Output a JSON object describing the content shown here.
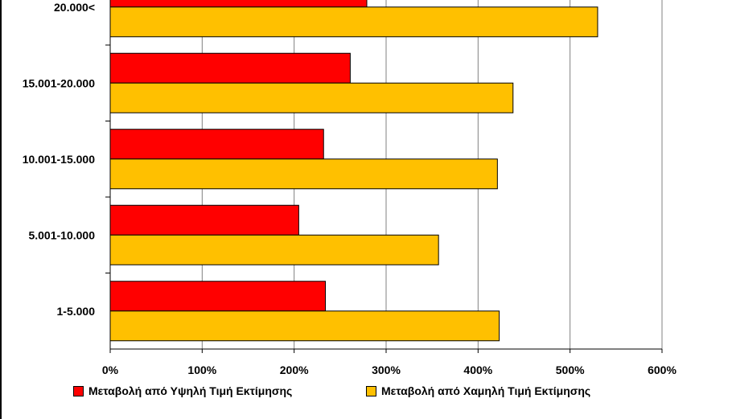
{
  "chart_data": {
    "type": "bar",
    "orientation": "horizontal",
    "categories": [
      "20.000<",
      "15.001-20.000",
      "10.001-15.000",
      "5.001-10.000",
      "1-5.000"
    ],
    "series": [
      {
        "name": "Μεταβολή από Υψηλή Τιμή Εκτίμησης",
        "color": "#ff0000",
        "values": [
          279,
          261,
          232,
          205,
          234
        ]
      },
      {
        "name": "Μεταβολή από Χαμηλή Τιμή Εκτίμησης",
        "color": "#ffc000",
        "values": [
          530,
          438,
          421,
          357,
          423
        ]
      }
    ],
    "xlim": [
      0,
      600
    ],
    "xticks": [
      0,
      100,
      200,
      300,
      400,
      500,
      600
    ],
    "xtick_labels": [
      "0%",
      "100%",
      "200%",
      "300%",
      "400%",
      "500%",
      "600%"
    ],
    "grid": "vertical",
    "legend_position": "bottom"
  }
}
